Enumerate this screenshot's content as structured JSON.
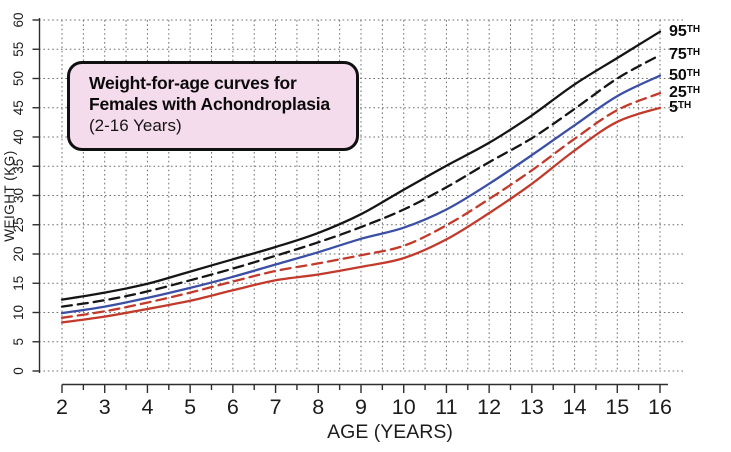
{
  "title_box": {
    "line1": "Weight-for-age curves for",
    "line2": "Females with Achondroplasia",
    "line3": "(2-16 Years)"
  },
  "axes": {
    "x_label": "AGE (YEARS)",
    "y_label": "WEIGHT (KG)",
    "x_ticks": [
      2,
      3,
      4,
      5,
      6,
      7,
      8,
      9,
      10,
      11,
      12,
      13,
      14,
      15,
      16
    ],
    "y_ticks": [
      0,
      5,
      10,
      15,
      20,
      25,
      30,
      35,
      40,
      45,
      50,
      55,
      60
    ]
  },
  "colors": {
    "black_curve": "#151515",
    "blue_curve": "#3b4fa4",
    "red_curve": "#c23a2b",
    "grid": "#6e6e6e",
    "axis": "#2e2e2e",
    "title_box_fill": "#f5dcec",
    "title_box_border": "#101010",
    "background": "#ffffff"
  },
  "chart_data": {
    "type": "line",
    "title": "Weight-for-age curves for Females with Achondroplasia (2-16 Years)",
    "xlabel": "AGE (YEARS)",
    "ylabel": "WEIGHT (KG)",
    "xlim": [
      2,
      16
    ],
    "ylim": [
      0,
      60
    ],
    "grid": "dotted; vertical every 0.5 year, horizontal every 5 kg",
    "legend_position": "right edge, labels at curve endpoints",
    "x": [
      2,
      3,
      4,
      5,
      6,
      7,
      8,
      9,
      10,
      11,
      12,
      13,
      14,
      15,
      16
    ],
    "series": [
      {
        "name": "95TH",
        "line_style": "solid",
        "color": "#151515",
        "values": [
          12.2,
          13.4,
          14.9,
          17.0,
          19.1,
          21.2,
          23.6,
          26.8,
          31.0,
          35.1,
          39.0,
          43.7,
          49.0,
          53.5,
          58.0
        ]
      },
      {
        "name": "75TH",
        "line_style": "dashed",
        "color": "#151515",
        "values": [
          11.0,
          12.1,
          13.6,
          15.5,
          17.5,
          19.7,
          22.0,
          24.6,
          27.6,
          31.4,
          35.7,
          39.8,
          44.8,
          50.0,
          54.0
        ]
      },
      {
        "name": "50TH",
        "line_style": "solid",
        "color": "#3b4fa4",
        "values": [
          9.9,
          11.0,
          12.5,
          14.2,
          16.1,
          18.2,
          20.3,
          22.6,
          24.5,
          27.6,
          32.0,
          36.9,
          42.0,
          47.0,
          50.5
        ]
      },
      {
        "name": "25TH",
        "line_style": "dashed",
        "color": "#c23a2b",
        "values": [
          9.1,
          10.2,
          11.7,
          13.4,
          15.3,
          17.1,
          18.4,
          19.8,
          21.4,
          24.9,
          29.4,
          34.3,
          39.7,
          44.6,
          47.5
        ]
      },
      {
        "name": "5TH",
        "line_style": "solid",
        "color": "#c23a2b",
        "values": [
          8.3,
          9.3,
          10.6,
          12.0,
          13.8,
          15.5,
          16.5,
          17.8,
          19.3,
          22.5,
          27.0,
          32.0,
          37.7,
          42.6,
          45.0
        ]
      }
    ]
  }
}
